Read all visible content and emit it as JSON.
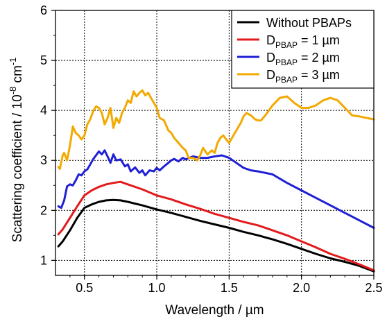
{
  "chart_data": {
    "type": "line",
    "xlabel": "Wavelength / µm",
    "ylabel": {
      "main": "Scattering coefficient / 10",
      "exp1": "-8",
      "unit": " cm",
      "exp2": "-1"
    },
    "xlim": [
      0.3,
      2.5
    ],
    "ylim": [
      0.7,
      6.0
    ],
    "xticks": [
      0.5,
      1.0,
      1.5,
      2.0,
      2.5
    ],
    "xtick_labels": [
      "0.5",
      "1.0",
      "1.5",
      "2.0",
      "2.5"
    ],
    "yticks": [
      1,
      2,
      3,
      4,
      5,
      6
    ],
    "ytick_labels": [
      "1",
      "2",
      "3",
      "4",
      "5",
      "6"
    ],
    "grid": true,
    "legend_position": "top-right",
    "series": [
      {
        "label_main": "Without PBAPs",
        "label_sub": "",
        "label_tail": "",
        "color": "#000000",
        "points": [
          [
            0.32,
            1.28
          ],
          [
            0.35,
            1.38
          ],
          [
            0.4,
            1.6
          ],
          [
            0.45,
            1.85
          ],
          [
            0.5,
            2.05
          ],
          [
            0.55,
            2.12
          ],
          [
            0.6,
            2.17
          ],
          [
            0.65,
            2.2
          ],
          [
            0.7,
            2.21
          ],
          [
            0.75,
            2.2
          ],
          [
            0.8,
            2.17
          ],
          [
            0.9,
            2.1
          ],
          [
            1.0,
            2.02
          ],
          [
            1.1,
            1.95
          ],
          [
            1.2,
            1.87
          ],
          [
            1.3,
            1.79
          ],
          [
            1.4,
            1.72
          ],
          [
            1.5,
            1.65
          ],
          [
            1.6,
            1.57
          ],
          [
            1.7,
            1.5
          ],
          [
            1.8,
            1.42
          ],
          [
            1.9,
            1.33
          ],
          [
            2.0,
            1.23
          ],
          [
            2.1,
            1.13
          ],
          [
            2.2,
            1.04
          ],
          [
            2.3,
            0.97
          ],
          [
            2.4,
            0.89
          ],
          [
            2.5,
            0.78
          ]
        ]
      },
      {
        "label_main": "D",
        "label_sub": "PBAP",
        "label_tail": " = 1 µm",
        "color": "#e31a1c",
        "points": [
          [
            0.32,
            1.52
          ],
          [
            0.35,
            1.62
          ],
          [
            0.4,
            1.85
          ],
          [
            0.45,
            2.08
          ],
          [
            0.5,
            2.3
          ],
          [
            0.55,
            2.4
          ],
          [
            0.6,
            2.47
          ],
          [
            0.65,
            2.52
          ],
          [
            0.7,
            2.55
          ],
          [
            0.75,
            2.57
          ],
          [
            0.8,
            2.52
          ],
          [
            0.9,
            2.42
          ],
          [
            1.0,
            2.3
          ],
          [
            1.1,
            2.22
          ],
          [
            1.2,
            2.12
          ],
          [
            1.3,
            2.03
          ],
          [
            1.4,
            1.93
          ],
          [
            1.5,
            1.85
          ],
          [
            1.6,
            1.77
          ],
          [
            1.7,
            1.7
          ],
          [
            1.8,
            1.6
          ],
          [
            1.9,
            1.5
          ],
          [
            2.0,
            1.38
          ],
          [
            2.1,
            1.26
          ],
          [
            2.2,
            1.13
          ],
          [
            2.3,
            1.03
          ],
          [
            2.4,
            0.92
          ],
          [
            2.5,
            0.8
          ]
        ]
      },
      {
        "label_main": "D",
        "label_sub": "PBAP",
        "label_tail": " = 2 µm",
        "color": "#1f1fd6",
        "points": [
          [
            0.32,
            2.08
          ],
          [
            0.34,
            2.05
          ],
          [
            0.36,
            2.2
          ],
          [
            0.38,
            2.48
          ],
          [
            0.4,
            2.52
          ],
          [
            0.42,
            2.5
          ],
          [
            0.44,
            2.6
          ],
          [
            0.46,
            2.72
          ],
          [
            0.48,
            2.7
          ],
          [
            0.5,
            2.78
          ],
          [
            0.52,
            2.82
          ],
          [
            0.54,
            2.92
          ],
          [
            0.56,
            3.02
          ],
          [
            0.58,
            3.1
          ],
          [
            0.6,
            3.18
          ],
          [
            0.62,
            3.12
          ],
          [
            0.64,
            3.2
          ],
          [
            0.66,
            3.08
          ],
          [
            0.68,
            2.95
          ],
          [
            0.7,
            3.12
          ],
          [
            0.72,
            3.0
          ],
          [
            0.75,
            3.02
          ],
          [
            0.78,
            2.88
          ],
          [
            0.8,
            2.92
          ],
          [
            0.82,
            2.78
          ],
          [
            0.85,
            2.86
          ],
          [
            0.88,
            2.75
          ],
          [
            0.9,
            2.8
          ],
          [
            0.92,
            2.7
          ],
          [
            0.95,
            2.8
          ],
          [
            0.98,
            2.78
          ],
          [
            1.0,
            2.85
          ],
          [
            1.02,
            2.8
          ],
          [
            1.05,
            2.88
          ],
          [
            1.08,
            2.95
          ],
          [
            1.1,
            3.0
          ],
          [
            1.12,
            3.03
          ],
          [
            1.15,
            2.98
          ],
          [
            1.18,
            3.05
          ],
          [
            1.2,
            3.02
          ],
          [
            1.25,
            3.08
          ],
          [
            1.3,
            3.05
          ],
          [
            1.35,
            3.05
          ],
          [
            1.4,
            3.08
          ],
          [
            1.45,
            3.1
          ],
          [
            1.5,
            3.05
          ],
          [
            1.55,
            2.95
          ],
          [
            1.6,
            2.85
          ],
          [
            1.65,
            2.8
          ],
          [
            1.7,
            2.78
          ],
          [
            1.8,
            2.72
          ],
          [
            1.9,
            2.55
          ],
          [
            2.0,
            2.4
          ],
          [
            2.1,
            2.25
          ],
          [
            2.2,
            2.1
          ],
          [
            2.3,
            1.95
          ],
          [
            2.4,
            1.8
          ],
          [
            2.5,
            1.65
          ]
        ]
      },
      {
        "label_main": "D",
        "label_sub": "PBAP",
        "label_tail": " = 3 µm",
        "color": "#f2a900",
        "points": [
          [
            0.32,
            2.87
          ],
          [
            0.33,
            2.83
          ],
          [
            0.35,
            3.1
          ],
          [
            0.36,
            3.15
          ],
          [
            0.38,
            3.0
          ],
          [
            0.4,
            3.3
          ],
          [
            0.42,
            3.68
          ],
          [
            0.44,
            3.55
          ],
          [
            0.46,
            3.5
          ],
          [
            0.48,
            3.42
          ],
          [
            0.5,
            3.5
          ],
          [
            0.52,
            3.72
          ],
          [
            0.54,
            3.82
          ],
          [
            0.56,
            3.98
          ],
          [
            0.58,
            4.08
          ],
          [
            0.6,
            4.05
          ],
          [
            0.62,
            3.95
          ],
          [
            0.64,
            3.72
          ],
          [
            0.66,
            3.85
          ],
          [
            0.68,
            4.05
          ],
          [
            0.7,
            3.65
          ],
          [
            0.72,
            3.85
          ],
          [
            0.74,
            3.75
          ],
          [
            0.76,
            3.95
          ],
          [
            0.78,
            4.05
          ],
          [
            0.8,
            4.2
          ],
          [
            0.82,
            4.15
          ],
          [
            0.84,
            4.38
          ],
          [
            0.86,
            4.28
          ],
          [
            0.88,
            4.35
          ],
          [
            0.9,
            4.4
          ],
          [
            0.92,
            4.3
          ],
          [
            0.94,
            4.35
          ],
          [
            0.96,
            4.25
          ],
          [
            0.98,
            4.15
          ],
          [
            1.0,
            4.05
          ],
          [
            1.02,
            3.85
          ],
          [
            1.05,
            3.8
          ],
          [
            1.08,
            3.6
          ],
          [
            1.1,
            3.55
          ],
          [
            1.12,
            3.45
          ],
          [
            1.15,
            3.35
          ],
          [
            1.18,
            3.25
          ],
          [
            1.2,
            3.2
          ],
          [
            1.22,
            3.05
          ],
          [
            1.25,
            3.05
          ],
          [
            1.28,
            3.0
          ],
          [
            1.3,
            3.1
          ],
          [
            1.32,
            3.25
          ],
          [
            1.35,
            3.12
          ],
          [
            1.38,
            3.2
          ],
          [
            1.4,
            3.15
          ],
          [
            1.42,
            3.35
          ],
          [
            1.44,
            3.45
          ],
          [
            1.46,
            3.5
          ],
          [
            1.48,
            3.42
          ],
          [
            1.5,
            3.35
          ],
          [
            1.52,
            3.45
          ],
          [
            1.55,
            3.6
          ],
          [
            1.58,
            3.75
          ],
          [
            1.6,
            3.88
          ],
          [
            1.62,
            3.95
          ],
          [
            1.65,
            3.9
          ],
          [
            1.68,
            3.82
          ],
          [
            1.7,
            3.8
          ],
          [
            1.72,
            3.8
          ],
          [
            1.75,
            3.9
          ],
          [
            1.8,
            4.1
          ],
          [
            1.85,
            4.25
          ],
          [
            1.9,
            4.28
          ],
          [
            1.95,
            4.15
          ],
          [
            2.0,
            4.05
          ],
          [
            2.05,
            4.05
          ],
          [
            2.1,
            4.1
          ],
          [
            2.15,
            4.2
          ],
          [
            2.2,
            4.25
          ],
          [
            2.25,
            4.2
          ],
          [
            2.3,
            4.05
          ],
          [
            2.35,
            3.9
          ],
          [
            2.4,
            3.88
          ],
          [
            2.45,
            3.85
          ],
          [
            2.5,
            3.82
          ]
        ]
      }
    ]
  }
}
